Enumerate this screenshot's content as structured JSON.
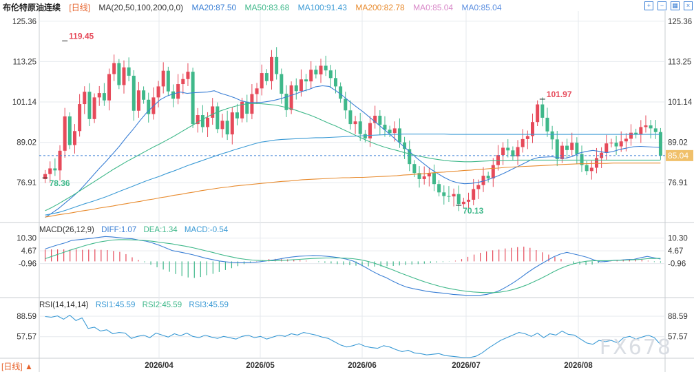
{
  "header": {
    "title": "布伦特原油连续",
    "period": "[日线]",
    "ma_params": "MA(20,50,100,200,0,0)",
    "ma_values": [
      {
        "label": "MA20:87.50",
        "color": "#3a7fd5"
      },
      {
        "label": "MA50:83.68",
        "color": "#3fb88a"
      },
      {
        "label": "MA100:91.43",
        "color": "#3a9ad5"
      },
      {
        "label": "MA200:82.78",
        "color": "#e88b2e"
      },
      {
        "label": "MA0:85.04",
        "color": "#d888c8"
      },
      {
        "label": "MA0:85.04",
        "color": "#5a8ee0"
      }
    ],
    "toolbar_icons": [
      "expand-icon",
      "minimize-icon",
      "grid-icon",
      "close-icon"
    ]
  },
  "colors": {
    "up": "#e64a5a",
    "down": "#3fb88a",
    "grid": "#e6e9ee",
    "axis_text": "#333333",
    "price_line": "#3a7fd5",
    "price_tag_bg": "#f0c06a"
  },
  "chart_data": [
    {
      "type": "candlestick",
      "name": "price",
      "y_ticks": [
        "125.36",
        "113.25",
        "101.14",
        "89.02",
        "76.91"
      ],
      "ylim": [
        66,
        128
      ],
      "grid": true,
      "x_labels": [
        "2026/04",
        "2026/05",
        "2026/06",
        "2026/07",
        "2026/08"
      ],
      "last_price": "85.04",
      "annotations": [
        {
          "label": "119.45",
          "index": 4,
          "value": 119.45,
          "color": "#e64a5a"
        },
        {
          "label": "78.36",
          "index": 0,
          "value": 78.36,
          "color": "#3fb88a"
        },
        {
          "label": "101.97",
          "index": 101,
          "value": 101.97,
          "color": "#e64a5a"
        },
        {
          "label": "70.13",
          "index": 84,
          "value": 70.13,
          "color": "#3fb88a"
        }
      ],
      "closes": [
        79.5,
        81.2,
        80.6,
        86.5,
        96.8,
        88.2,
        92.4,
        100.5,
        104.2,
        96.0,
        102.5,
        103.8,
        101.6,
        109.5,
        112.8,
        106.2,
        111.5,
        109.0,
        98.5,
        104.6,
        101.8,
        97.5,
        102.5,
        105.8,
        110.5,
        104.3,
        102.1,
        106.5,
        108.0,
        110.2,
        94.5,
        97.2,
        93.6,
        96.4,
        99.8,
        93.0,
        95.5,
        91.4,
        98.0,
        96.2,
        101.2,
        97.6,
        103.5,
        105.2,
        109.8,
        107.4,
        114.6,
        109.5,
        103.6,
        98.7,
        106.1,
        104.4,
        107.9,
        107.3,
        110.8,
        109.4,
        112.0,
        110.6,
        108.3,
        105.8,
        102.1,
        98.6,
        94.5,
        95.3,
        91.5,
        90.2,
        94.8,
        97.0,
        94.3,
        92.8,
        91.8,
        93.2,
        89.0,
        87.0,
        82.5,
        79.8,
        78.0,
        78.8,
        79.8,
        76.5,
        74.0,
        72.9,
        72.8,
        73.5,
        70.5,
        71.2,
        71.8,
        75.0,
        76.2,
        79.0,
        78.2,
        82.2,
        85.2,
        87.4,
        86.6,
        84.8,
        87.6,
        90.0,
        90.9,
        95.1,
        100.4,
        96.4,
        92.3,
        89.9,
        84.0,
        88.0,
        86.7,
        88.9,
        85.5,
        82.2,
        80.4,
        81.4,
        84.3,
        85.9,
        88.7,
        88.9,
        87.8,
        89.3,
        90.1,
        91.9,
        91.4,
        93.6,
        94.1,
        93.2,
        92.1,
        85.0
      ],
      "ma20": [
        66.5,
        67.8,
        69.2,
        70.9,
        72.6,
        74.4,
        76.6,
        78.9,
        81.2,
        83.3,
        85.6,
        87.9,
        90.5,
        92.9,
        95.5,
        97.9,
        99.9,
        101.8,
        102.9,
        103.6,
        104.1,
        103.7,
        103.9,
        104.0,
        104.1,
        104.5,
        103.7,
        103.1,
        102.4,
        101.5,
        101.0,
        100.9,
        101.0,
        101.3,
        101.7,
        102.2,
        102.9,
        103.5,
        104.3,
        104.9,
        105.7,
        106.0,
        105.8,
        104.5,
        103.0,
        101.3,
        99.7,
        98.2,
        96.5,
        94.8,
        93.1,
        91.4,
        89.6,
        87.8,
        86.0,
        84.2,
        82.6,
        81.0,
        79.7,
        78.5,
        77.5,
        76.9,
        76.6,
        76.7,
        77.0,
        77.5,
        78.2,
        79.0,
        79.9,
        80.9,
        81.9,
        82.9,
        83.9,
        84.5,
        84.6,
        84.7,
        84.4,
        84.3,
        84.8,
        85.8,
        86.3,
        86.6,
        86.3,
        85.9,
        86.3,
        86.9,
        87.3,
        87.7,
        87.8,
        87.7,
        87.6,
        87.5
      ],
      "ma50": [
        68.5,
        69.5,
        70.6,
        71.8,
        73.0,
        74.3,
        75.6,
        76.9,
        78.2,
        79.5,
        80.8,
        82.0,
        83.2,
        84.3,
        85.4,
        86.5,
        87.6,
        88.6,
        89.7,
        90.8,
        92.0,
        93.2,
        94.4,
        95.6,
        96.7,
        97.7,
        98.5,
        99.2,
        99.8,
        100.3,
        100.6,
        100.7,
        100.6,
        100.4,
        100.2,
        99.8,
        99.3,
        98.7,
        98.0,
        97.3,
        96.5,
        95.6,
        94.7,
        93.9,
        92.9,
        92.0,
        91.0,
        90.1,
        89.2,
        88.4,
        87.7,
        87.1,
        86.6,
        86.0,
        85.5,
        85.0,
        84.6,
        84.2,
        83.9,
        83.6,
        83.4,
        83.3,
        83.2,
        83.2,
        83.3,
        83.4,
        83.5,
        83.5,
        83.6,
        83.6,
        83.7,
        83.7,
        83.7,
        83.7,
        83.7,
        83.7,
        83.7,
        83.7,
        83.7,
        83.7,
        83.7,
        83.7,
        83.7,
        83.7,
        83.7,
        83.7,
        83.7,
        83.7,
        83.7,
        83.7,
        83.7,
        83.7
      ],
      "ma100": [
        67.2,
        67.6,
        68.0,
        68.6,
        69.3,
        70.0,
        70.7,
        71.3,
        72.0,
        72.7,
        73.5,
        74.3,
        75.1,
        75.9,
        76.7,
        77.5,
        78.2,
        78.9,
        79.7,
        80.4,
        81.2,
        82.0,
        82.7,
        83.4,
        84.1,
        84.8,
        85.5,
        86.1,
        86.8,
        87.4,
        88.0,
        88.6,
        89.1,
        89.4,
        89.7,
        89.9,
        90.0,
        90.1,
        90.2,
        90.3,
        90.4,
        90.4,
        90.5,
        90.6,
        90.7,
        90.8,
        90.9,
        91.0,
        91.1,
        91.2,
        91.3,
        91.4,
        91.4,
        91.5,
        91.5,
        91.5,
        91.5,
        91.5,
        91.5,
        91.5,
        91.4,
        91.4,
        91.4,
        91.4,
        91.4,
        91.4,
        91.4,
        91.4,
        91.4,
        91.4,
        91.4,
        91.4,
        91.4,
        91.4,
        91.4,
        91.4,
        91.4,
        91.4,
        91.4,
        91.4,
        91.4,
        91.4,
        91.4,
        91.4,
        91.4,
        91.4,
        91.4,
        91.4,
        91.4,
        91.4,
        91.4,
        91.4
      ],
      "ma200": [
        66.6,
        66.9,
        67.3,
        67.6,
        67.9,
        68.3,
        68.6,
        68.9,
        69.3,
        69.6,
        69.9,
        70.3,
        70.6,
        71.0,
        71.3,
        71.7,
        72.0,
        72.4,
        72.7,
        73.1,
        73.4,
        73.8,
        74.1,
        74.5,
        74.8,
        75.1,
        75.4,
        75.6,
        75.9,
        76.1,
        76.3,
        76.5,
        76.7,
        76.9,
        77.1,
        77.3,
        77.4,
        77.6,
        77.8,
        77.9,
        78.0,
        78.1,
        78.2,
        78.3,
        78.4,
        78.4,
        78.5,
        78.5,
        78.6,
        78.7,
        78.8,
        78.9,
        79.0,
        79.2,
        79.3,
        79.5,
        79.6,
        79.8,
        80.0,
        80.1,
        80.3,
        80.4,
        80.6,
        80.7,
        80.9,
        81.0,
        81.2,
        81.3,
        81.5,
        81.6,
        81.7,
        81.8,
        81.9,
        82.0,
        82.1,
        82.2,
        82.3,
        82.4,
        82.5,
        82.6,
        82.6,
        82.7,
        82.7,
        82.7,
        82.8,
        82.8,
        82.8,
        82.8,
        82.8,
        82.8,
        82.8,
        82.8
      ]
    },
    {
      "type": "macd",
      "name": "macd",
      "label": "MACD(26,12,9)",
      "legend": [
        {
          "label": "DIFF:1.07",
          "color": "#3a7fd5"
        },
        {
          "label": "DEA:1.34",
          "color": "#3fb88a"
        },
        {
          "label": "MACD:-0.54",
          "color": "#e64a5a"
        }
      ],
      "y_ticks": [
        "10.30",
        "4.67",
        "-0.96"
      ],
      "ylim": [
        -16,
        12
      ],
      "diff": [
        5.5,
        6.5,
        7.4,
        8.2,
        9.3,
        9.6,
        9.9,
        10.2,
        10.6,
        11.0,
        10.8,
        10.5,
        10.2,
        10.0,
        9.4,
        9.0,
        8.2,
        7.2,
        6.0,
        4.8,
        4.2,
        3.6,
        3.0,
        2.2,
        1.4,
        0.8,
        0.2,
        -0.2,
        -0.5,
        -0.6,
        -0.6,
        -0.5,
        -0.2,
        0.2,
        0.6,
        1.0,
        1.6,
        2.0,
        2.3,
        2.4,
        2.6,
        2.5,
        2.3,
        2.0,
        1.6,
        1.0,
        0.2,
        -1.2,
        -2.8,
        -4.5,
        -6.0,
        -7.2,
        -8.8,
        -10.2,
        -11.3,
        -12.0,
        -12.6,
        -13.2,
        -13.6,
        -13.9,
        -14.2,
        -14.6,
        -14.8,
        -15.0,
        -15.0,
        -15.0,
        -14.6,
        -13.9,
        -12.8,
        -11.2,
        -9.4,
        -7.4,
        -5.2,
        -3.2,
        -1.4,
        0.3,
        2.0,
        3.2,
        4.0,
        3.3,
        2.6,
        1.8,
        0.7,
        -0.2,
        0.0,
        0.5,
        0.6,
        0.8,
        0.9,
        1.6,
        2.2,
        1.6,
        1.07
      ],
      "dea": [
        1.2,
        2.2,
        3.2,
        4.2,
        5.2,
        6.1,
        7.0,
        7.8,
        8.5,
        9.0,
        9.4,
        9.6,
        9.6,
        9.5,
        9.4,
        9.2,
        8.9,
        8.5,
        8.1,
        7.7,
        7.2,
        6.7,
        6.1,
        5.4,
        4.7,
        4.0,
        3.2,
        2.5,
        1.9,
        1.3,
        0.9,
        0.6,
        0.4,
        0.3,
        0.3,
        0.4,
        0.5,
        0.7,
        0.9,
        1.1,
        1.3,
        1.4,
        1.5,
        1.5,
        1.5,
        1.4,
        1.2,
        0.8,
        0.2,
        -0.6,
        -1.6,
        -2.7,
        -3.8,
        -5.0,
        -6.1,
        -7.2,
        -8.3,
        -9.3,
        -10.2,
        -11.0,
        -11.7,
        -12.3,
        -12.8,
        -13.2,
        -13.5,
        -13.7,
        -13.8,
        -13.8,
        -13.6,
        -13.1,
        -12.4,
        -11.5,
        -10.4,
        -9.1,
        -7.7,
        -6.2,
        -4.6,
        -3.2,
        -2.0,
        -1.1,
        -0.4,
        0.1,
        0.3,
        0.3,
        0.3,
        0.4,
        0.5,
        0.6,
        0.7,
        0.9,
        1.2,
        1.3,
        1.34
      ],
      "hist": [
        5.2,
        5.3,
        5.3,
        5.3,
        5.2,
        5.3,
        5.1,
        5.2,
        5.3,
        5.1,
        5.0,
        4.6,
        4.2,
        3.2,
        1.8,
        0.6,
        -0.4,
        -1.5,
        -2.6,
        -3.6,
        -4.6,
        -5.6,
        -6.5,
        -7.1,
        -7.3,
        -6.9,
        -6.1,
        -5.5,
        -4.7,
        -3.8,
        -3.0,
        -2.1,
        -1.2,
        -0.5,
        0.1,
        0.5,
        1.0,
        1.1,
        1.0,
        0.9,
        0.7,
        0.5,
        0.3,
        0.0,
        -0.3,
        -0.6,
        -0.9,
        -1.2,
        -1.5,
        -1.7,
        -1.9,
        -2.1,
        -2.2,
        -2.3,
        -2.2,
        -2.1,
        -2.0,
        -1.8,
        -1.6,
        -1.4,
        -1.2,
        -1.0,
        -0.7,
        -0.5,
        -0.3,
        -0.1,
        0.3,
        1.0,
        2.0,
        3.0,
        3.8,
        4.4,
        4.9,
        5.2,
        5.7,
        6.0,
        6.3,
        6.5,
        6.0,
        5.0,
        4.0,
        3.0,
        2.0,
        1.0,
        0.0,
        -1.0,
        -1.4,
        -1.6,
        -1.4,
        -0.8,
        -0.3,
        0.2,
        0.5,
        0.8,
        1.0,
        1.2,
        0.8,
        0.3,
        -0.3,
        -0.54
      ]
    },
    {
      "type": "line",
      "name": "rsi",
      "label": "RSI(14,14,14)",
      "legend": [
        {
          "label": "RSI1:45.59",
          "color": "#3a9ad5"
        },
        {
          "label": "RSI2:45.59",
          "color": "#3fb88a"
        },
        {
          "label": "RSI3:45.59",
          "color": "#3a9ad5"
        }
      ],
      "y_ticks": [
        "88.59",
        "57.57"
      ],
      "ylim": [
        25,
        100
      ],
      "values": [
        88,
        87,
        89,
        84,
        90,
        82,
        86,
        70,
        72,
        66,
        68,
        62,
        64,
        63,
        55,
        58,
        60,
        56,
        63,
        60,
        57,
        62,
        59,
        63,
        58,
        56,
        60,
        57,
        55,
        58,
        56,
        54,
        58,
        60,
        56,
        58,
        54,
        57,
        60,
        58,
        62,
        60,
        64,
        62,
        60,
        57,
        55,
        50,
        45,
        42,
        44,
        47,
        43,
        41,
        40,
        44,
        42,
        38,
        35,
        37,
        33,
        32,
        30,
        31,
        32,
        29,
        28,
        27,
        26,
        26,
        28,
        33,
        40,
        46,
        52,
        56,
        60,
        64,
        62,
        58,
        63,
        56,
        62,
        60,
        66,
        61,
        60,
        54,
        48,
        46,
        52,
        50,
        52,
        48,
        56,
        58,
        54,
        57,
        60,
        56,
        45.59
      ]
    }
  ]
}
